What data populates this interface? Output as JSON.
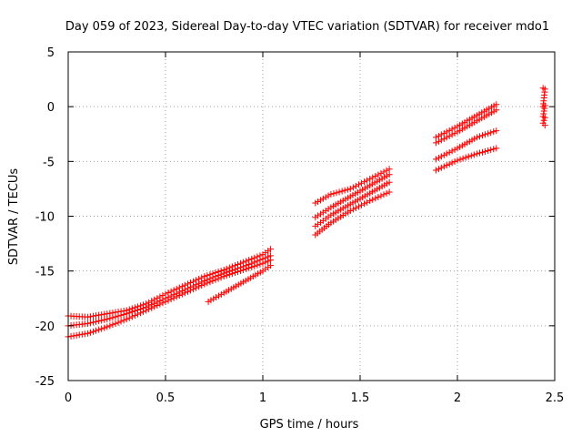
{
  "chart_data": {
    "type": "scatter",
    "title": "Day 059 of 2023, Sidereal Day-to-day VTEC variation (SDTVAR) for receiver mdo1",
    "xlabel": "GPS time / hours",
    "ylabel": "SDTVAR / TECUs",
    "xlim": [
      0,
      2.5
    ],
    "ylim": [
      -25,
      5
    ],
    "x_ticks": [
      0,
      0.5,
      1,
      1.5,
      2,
      2.5
    ],
    "x_tick_labels": [
      "0",
      "0.5",
      "1",
      "1.5",
      "2",
      "2.5"
    ],
    "y_ticks": [
      5,
      0,
      -5,
      -10,
      -15,
      -20,
      -25
    ],
    "y_tick_labels": [
      "5",
      "0",
      "-5",
      "-10",
      "-15",
      "-20",
      "-25"
    ],
    "grid": true,
    "marker": "plus",
    "marker_color": "#ff0000",
    "series": [
      {
        "x": [
          0.0,
          0.1,
          0.2,
          0.3,
          0.4,
          0.5,
          0.6,
          0.7,
          0.8,
          0.9,
          1.0,
          1.04
        ],
        "y": [
          -19.1,
          -19.2,
          -18.9,
          -18.6,
          -18.0,
          -17.1,
          -16.3,
          -15.5,
          -14.9,
          -14.2,
          -13.5,
          -13.0
        ]
      },
      {
        "x": [
          0.0,
          0.1,
          0.2,
          0.3,
          0.4,
          0.5,
          0.6,
          0.7,
          0.8,
          0.9,
          1.0,
          1.04
        ],
        "y": [
          -20.0,
          -19.8,
          -19.4,
          -18.9,
          -18.3,
          -17.5,
          -16.7,
          -15.9,
          -15.2,
          -14.6,
          -13.9,
          -13.6
        ]
      },
      {
        "x": [
          0.0,
          0.1,
          0.2,
          0.3,
          0.4,
          0.5,
          0.6,
          0.7,
          0.8,
          0.9,
          1.0,
          1.04
        ],
        "y": [
          -21.0,
          -20.7,
          -20.1,
          -19.4,
          -18.6,
          -17.8,
          -17.0,
          -16.2,
          -15.5,
          -14.9,
          -14.3,
          -14.0
        ]
      },
      {
        "x": [
          0.72,
          0.8,
          0.9,
          1.0,
          1.04
        ],
        "y": [
          -17.8,
          -17.0,
          -16.0,
          -15.0,
          -14.5
        ]
      },
      {
        "x": [
          1.27,
          1.35,
          1.45,
          1.55,
          1.65
        ],
        "y": [
          -8.8,
          -8.0,
          -7.5,
          -6.6,
          -5.7
        ]
      },
      {
        "x": [
          1.27,
          1.35,
          1.45,
          1.55,
          1.65
        ],
        "y": [
          -10.1,
          -9.2,
          -8.2,
          -7.2,
          -6.2
        ]
      },
      {
        "x": [
          1.27,
          1.35,
          1.45,
          1.55,
          1.65
        ],
        "y": [
          -10.9,
          -9.9,
          -8.9,
          -7.9,
          -6.9
        ]
      },
      {
        "x": [
          1.27,
          1.35,
          1.45,
          1.55,
          1.65
        ],
        "y": [
          -11.7,
          -10.6,
          -9.5,
          -8.6,
          -7.8
        ]
      },
      {
        "x": [
          1.89,
          2.0,
          2.1,
          2.2
        ],
        "y": [
          -2.8,
          -1.8,
          -0.8,
          0.2
        ]
      },
      {
        "x": [
          1.89,
          2.0,
          2.1,
          2.2
        ],
        "y": [
          -3.3,
          -2.3,
          -1.3,
          -0.3
        ]
      },
      {
        "x": [
          1.89,
          2.0,
          2.1,
          2.2
        ],
        "y": [
          -4.8,
          -3.8,
          -2.8,
          -2.2
        ]
      },
      {
        "x": [
          1.89,
          2.0,
          2.1,
          2.2
        ],
        "y": [
          -5.8,
          -4.9,
          -4.3,
          -3.8
        ]
      },
      {
        "x": [
          2.44,
          2.45,
          2.44,
          2.45,
          2.44,
          2.45,
          2.44,
          2.45
        ],
        "y": [
          1.7,
          1.6,
          0.0,
          0.1,
          -0.9,
          -1.0,
          -1.5,
          -1.7
        ]
      }
    ]
  }
}
